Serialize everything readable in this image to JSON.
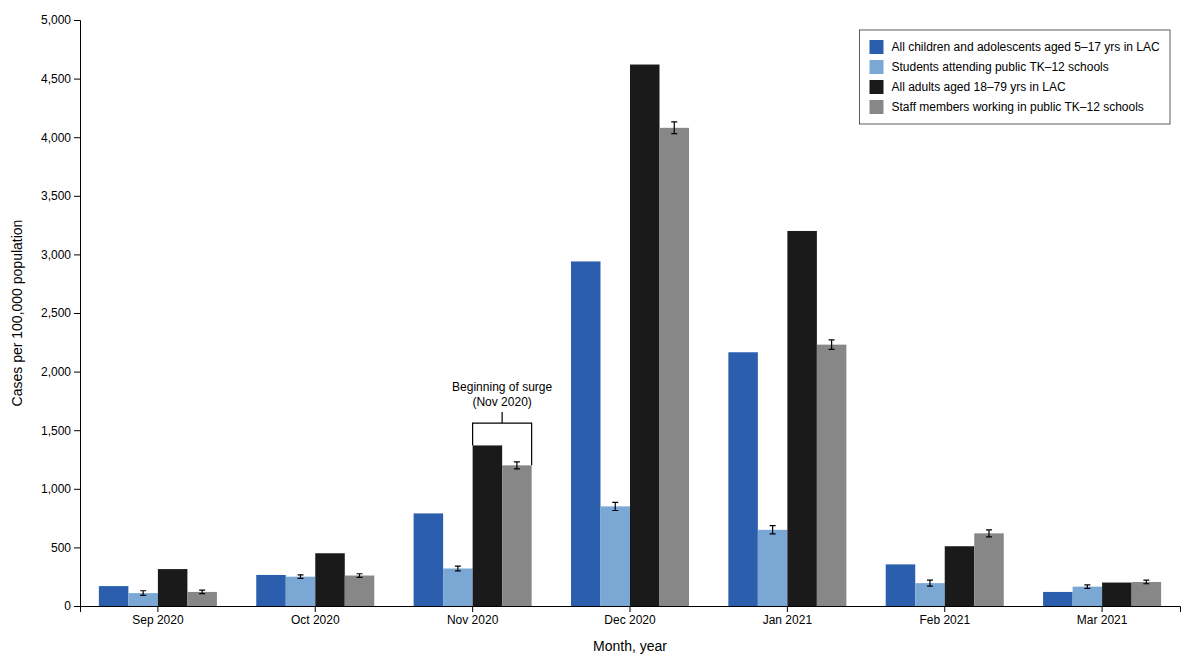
{
  "chart_data": {
    "type": "bar",
    "categories": [
      "Sep 2020",
      "Oct 2020",
      "Nov 2020",
      "Dec 2020",
      "Jan 2021",
      "Feb 2021",
      "Mar 2021"
    ],
    "series": [
      {
        "name": "All children and adolescents aged 5–17 yrs in LAC",
        "color": "#2b5fad",
        "values": [
          170,
          265,
          790,
          2940,
          2165,
          355,
          120
        ]
      },
      {
        "name": "Students attending public TK–12 schools",
        "color": "#7ba7d4",
        "values": [
          110,
          250,
          320,
          850,
          650,
          195,
          165
        ],
        "errors": [
          20,
          15,
          20,
          35,
          35,
          25,
          15
        ]
      },
      {
        "name": "All adults aged 18–79 yrs in LAC",
        "color": "#1a1a1a",
        "values": [
          315,
          450,
          1370,
          4620,
          3200,
          510,
          200
        ]
      },
      {
        "name": "Staff members working in public TK–12 schools",
        "color": "#878787",
        "values": [
          120,
          260,
          1200,
          4080,
          2230,
          620,
          205
        ],
        "errors": [
          15,
          15,
          30,
          50,
          40,
          30,
          15
        ]
      }
    ],
    "xlabel": "Month, year",
    "ylabel": "Cases per 100,000 population",
    "ylim": [
      0,
      5000
    ],
    "yticks": [
      0,
      500,
      {
        "value": 1000,
        "label": "1,000"
      },
      {
        "value": 1500,
        "label": "1,500"
      },
      {
        "value": 2000,
        "label": "2,000"
      },
      {
        "value": 2500,
        "label": "2,500"
      },
      {
        "value": 3000,
        "label": "3,000"
      },
      {
        "value": 3500,
        "label": "3,500"
      },
      {
        "value": 4000,
        "label": "4,000"
      },
      {
        "value": 4500,
        "label": "4,500"
      },
      {
        "value": 5000,
        "label": "5,000"
      }
    ],
    "grid": false,
    "legend": "upper right",
    "annotations": [
      {
        "text": "Beginning of surge\n(Nov 2020)",
        "x": "Nov 2020",
        "y": 1680
      }
    ]
  }
}
